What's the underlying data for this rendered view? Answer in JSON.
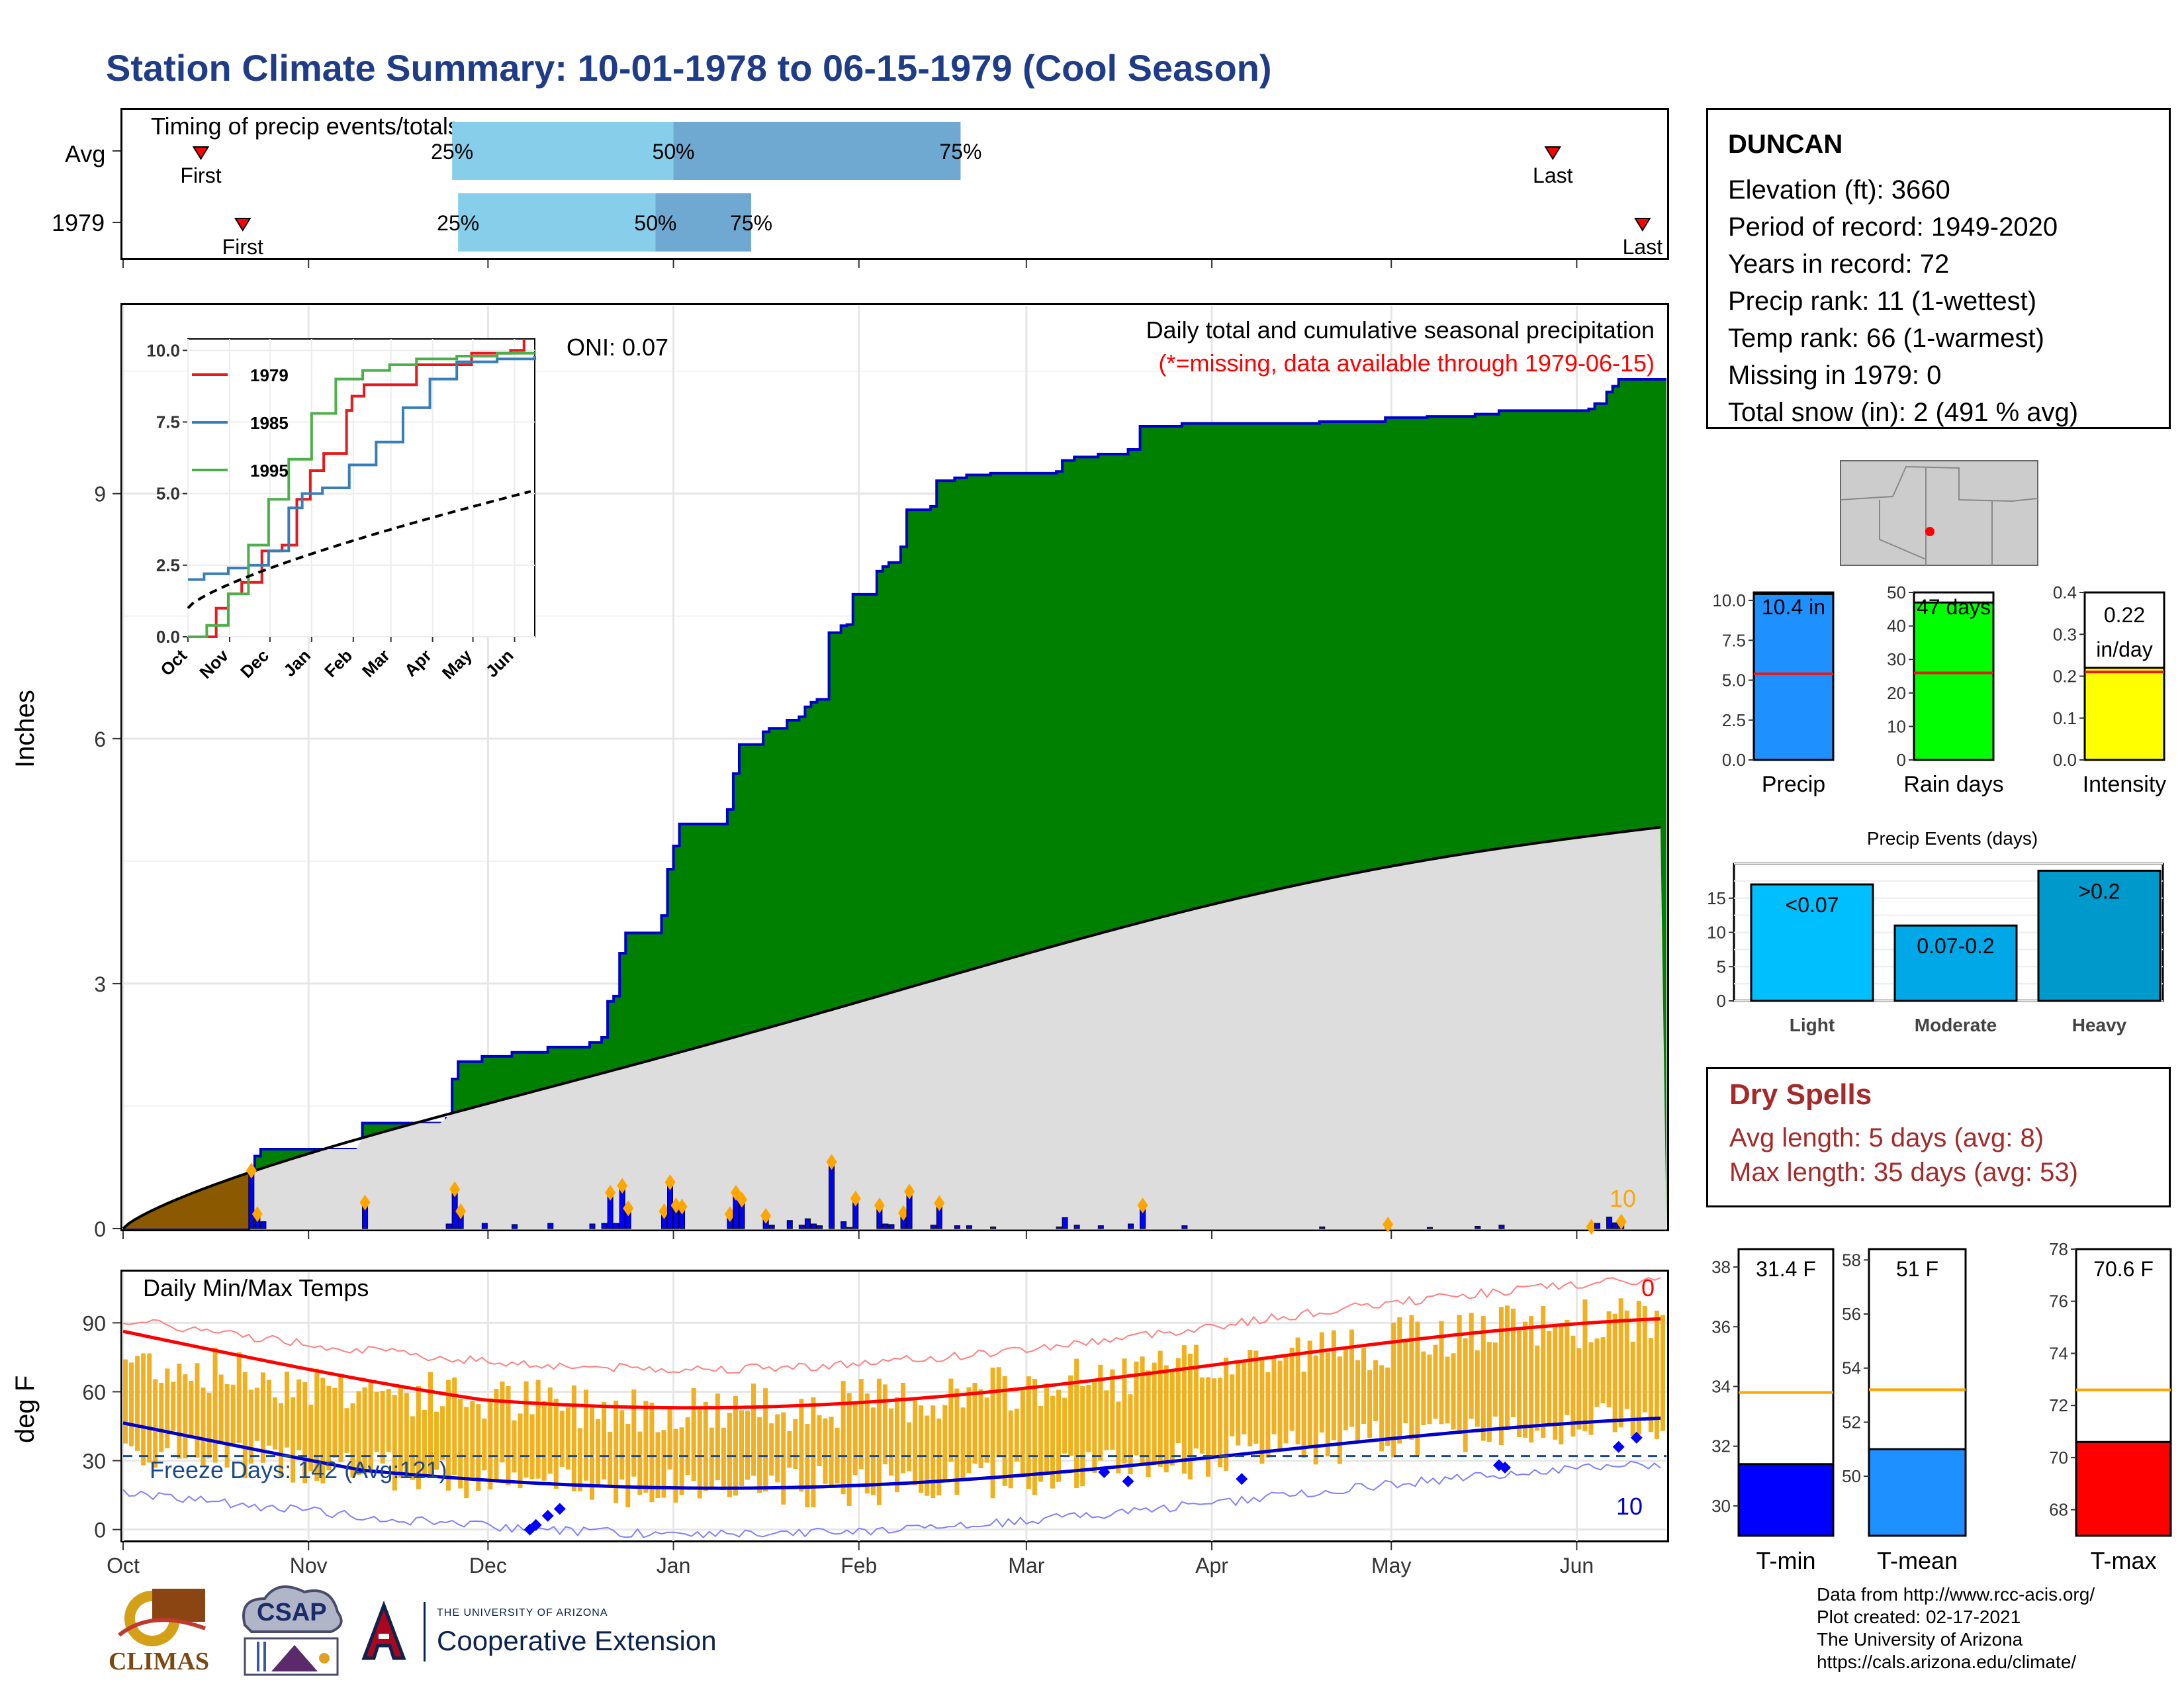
{
  "title": "Station Climate Summary: 10-01-1978 to 06-15-1979 (Cool Season)",
  "timing": {
    "title": "Timing of precip events/totals",
    "rows": [
      {
        "label": "Avg",
        "first_label": "First",
        "last_label": "Last",
        "p25": "25%",
        "p50": "50%",
        "p75": "75%",
        "first": "1978-10-14",
        "q25": "1978-11-25",
        "q50": "1979-01-01",
        "q75": "1979-02-18",
        "last": "1979-05-28"
      },
      {
        "label": "1979",
        "first_label": "First",
        "last_label": "Last",
        "p25": "25%",
        "p50": "50%",
        "p75": "75%",
        "first": "1978-10-21",
        "q25": "1978-11-26",
        "q50": "1978-12-29",
        "q75": "1979-01-14",
        "last": "1979-06-12"
      }
    ]
  },
  "precip": {
    "ylabel": "Inches",
    "caption": "Daily total and cumulative seasonal precipitation",
    "missing_note": "(*=missing, data available through 1979-06-15)",
    "oni": "ONI: 0.07",
    "count_label": "10",
    "month_labels": [
      "Oct",
      "Nov",
      "Dec",
      "Jan",
      "Feb",
      "Mar",
      "Apr",
      "May",
      "Jun"
    ],
    "y_ticks": [
      "0",
      "3",
      "6",
      "9"
    ]
  },
  "inset": {
    "legend": [
      "1979",
      "1985",
      "1995"
    ],
    "y_ticks": [
      "0.0",
      "2.5",
      "5.0",
      "7.5",
      "10.0"
    ],
    "month_labels": [
      "Oct",
      "Nov",
      "Dec",
      "Jan",
      "Feb",
      "Mar",
      "Apr",
      "May",
      "Jun"
    ]
  },
  "temps": {
    "title": "Daily Min/Max Temps",
    "ylabel": "deg F",
    "freeze_label": "Freeze Days: 142 (Avg:121)",
    "max_count": "0",
    "min_count": "10",
    "y_ticks": [
      "0",
      "30",
      "60",
      "90"
    ]
  },
  "station": {
    "name": "DUNCAN",
    "lines": [
      "Elevation (ft): 3660",
      "Period of record: 1949-2020",
      "Years in record: 72",
      "Precip rank: 11 (1-wettest)",
      "Temp rank: 66 (1-warmest)",
      "Missing in 1979: 0",
      "Total snow (in): 2 (491 % avg)"
    ]
  },
  "summary_bars": [
    {
      "label": "Precip",
      "value_label": "10.4 in",
      "value": 10.4,
      "avg": 5.4,
      "max": 10.5,
      "ticks": [
        "0.0",
        "2.5",
        "5.0",
        "7.5",
        "10.0"
      ],
      "color": "#1e90ff"
    },
    {
      "label": "Rain days",
      "value_label": "47 days",
      "value": 47,
      "avg": 26,
      "max": 50,
      "ticks": [
        "0",
        "10",
        "20",
        "30",
        "40",
        "50"
      ],
      "color": "#00ff00"
    },
    {
      "label": "Intensity",
      "value_label": "0.22 in/day",
      "value_lines": [
        "0.22",
        "in/day"
      ],
      "value": 0.22,
      "avg": 0.21,
      "max": 0.4,
      "ticks": [
        "0.0",
        "0.1",
        "0.2",
        "0.3",
        "0.4"
      ],
      "color": "#ffff00"
    }
  ],
  "events": {
    "title": "Precip Events (days)",
    "categories": [
      "Light",
      "Moderate",
      "Heavy"
    ],
    "bar_labels": [
      "<0.07",
      "0.07-0.2",
      ">0.2"
    ],
    "values": [
      17,
      11,
      19
    ],
    "ticks": [
      "0",
      "5",
      "10",
      "15"
    ],
    "colors": [
      "#00bfff",
      "#00a8e8",
      "#0099cc"
    ]
  },
  "dry_spells": {
    "title": "Dry Spells",
    "avg_line": "Avg length: 5 days (avg: 8)",
    "max_line": "Max length: 35 days (avg: 53)"
  },
  "temp_bars": [
    {
      "label": "T-min",
      "value_label": "31.4 F",
      "value": 31.4,
      "avg": 33.8,
      "min": 29,
      "max": 38.6,
      "ticks": [
        "30",
        "32",
        "34",
        "36",
        "38"
      ],
      "color": "#0000ff"
    },
    {
      "label": "T-mean",
      "value_label": "51 F",
      "value": 51.0,
      "avg": 53.2,
      "min": 47.8,
      "max": 58.4,
      "ticks": [
        "50",
        "52",
        "54",
        "56",
        "58"
      ],
      "color": "#1e90ff"
    },
    {
      "label": "T-max",
      "value_label": "70.6 F",
      "value": 70.6,
      "avg": 72.6,
      "min": 67,
      "max": 78,
      "ticks": [
        "68",
        "70",
        "72",
        "74",
        "76",
        "78"
      ],
      "color": "#ff0000"
    }
  ],
  "footer": {
    "lines": [
      "Data from http://www.rcc-acis.org/",
      "Plot created: 02-17-2021",
      "The University of Arizona",
      "https://cals.arizona.edu/climate/"
    ],
    "logo_climas": "CLIMAS",
    "logo_csap": "CSAP",
    "ua_small": "THE UNIVERSITY OF ARIZONA",
    "ua_big": "Cooperative Extension"
  },
  "colors": {
    "cumulative": "#008000",
    "cum_line": "#0000cc",
    "average": "#dddddd",
    "pre_season": "#8b5a00",
    "daily_bar": "#0000ff",
    "temp_range": "#f0b020",
    "tmax": "#ff0000",
    "tmin": "#0000cc"
  }
}
